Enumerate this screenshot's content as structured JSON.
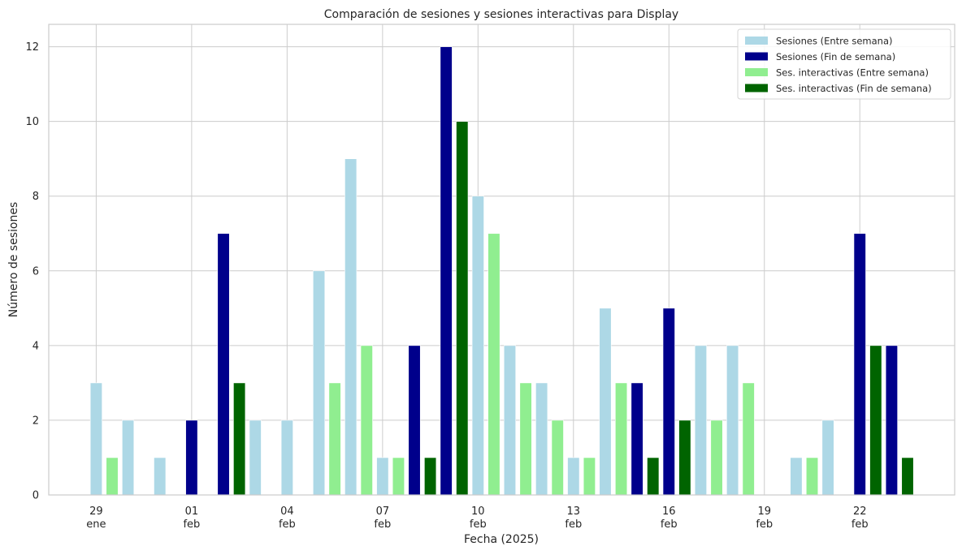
{
  "chart_data": {
    "type": "bar",
    "title": "Comparación de sesiones y sesiones interactivas para Display",
    "xlabel": "Fecha (2025)",
    "ylabel": "Número de sesiones",
    "ylim": [
      0,
      12.6
    ],
    "yticks": [
      0,
      2,
      4,
      6,
      8,
      10,
      12
    ],
    "x_ticks": [
      {
        "day": 29,
        "line1": "29",
        "line2": "ene"
      },
      {
        "day": 32,
        "line1": "01",
        "line2": "feb"
      },
      {
        "day": 35,
        "line1": "04",
        "line2": "feb"
      },
      {
        "day": 38,
        "line1": "07",
        "line2": "feb"
      },
      {
        "day": 41,
        "line1": "10",
        "line2": "feb"
      },
      {
        "day": 44,
        "line1": "13",
        "line2": "feb"
      },
      {
        "day": 47,
        "line1": "16",
        "line2": "feb"
      },
      {
        "day": 50,
        "line1": "19",
        "line2": "feb"
      },
      {
        "day": 53,
        "line1": "22",
        "line2": "feb"
      }
    ],
    "grid": true,
    "legend_position": "top-right",
    "series": [
      {
        "name": "Sesiones (Entre semana)",
        "color": "#add8e6",
        "points": [
          [
            29,
            3
          ],
          [
            30,
            2
          ],
          [
            31,
            1
          ],
          [
            34,
            2
          ],
          [
            35,
            2
          ],
          [
            36,
            6
          ],
          [
            37,
            9
          ],
          [
            38,
            1
          ],
          [
            41,
            8
          ],
          [
            42,
            4
          ],
          [
            43,
            3
          ],
          [
            44,
            1
          ],
          [
            45,
            5
          ],
          [
            48,
            4
          ],
          [
            49,
            4
          ],
          [
            51,
            1
          ],
          [
            52,
            2
          ]
        ]
      },
      {
        "name": "Sesiones (Fin de semana)",
        "color": "#00008b",
        "points": [
          [
            32,
            2
          ],
          [
            33,
            7
          ],
          [
            39,
            4
          ],
          [
            40,
            12
          ],
          [
            46,
            3
          ],
          [
            47,
            5
          ],
          [
            53,
            7
          ],
          [
            54,
            4
          ]
        ]
      },
      {
        "name": "Ses. interactivas (Entre semana)",
        "color": "#90ee90",
        "points": [
          [
            29,
            1
          ],
          [
            36,
            3
          ],
          [
            37,
            4
          ],
          [
            38,
            1
          ],
          [
            41,
            7
          ],
          [
            42,
            3
          ],
          [
            43,
            2
          ],
          [
            44,
            1
          ],
          [
            45,
            3
          ],
          [
            48,
            2
          ],
          [
            49,
            3
          ],
          [
            51,
            1
          ]
        ]
      },
      {
        "name": "Ses. interactivas (Fin de semana)",
        "color": "#006400",
        "points": [
          [
            33,
            3
          ],
          [
            39,
            1
          ],
          [
            40,
            10
          ],
          [
            46,
            1
          ],
          [
            47,
            2
          ],
          [
            53,
            4
          ],
          [
            54,
            1
          ]
        ]
      }
    ]
  }
}
